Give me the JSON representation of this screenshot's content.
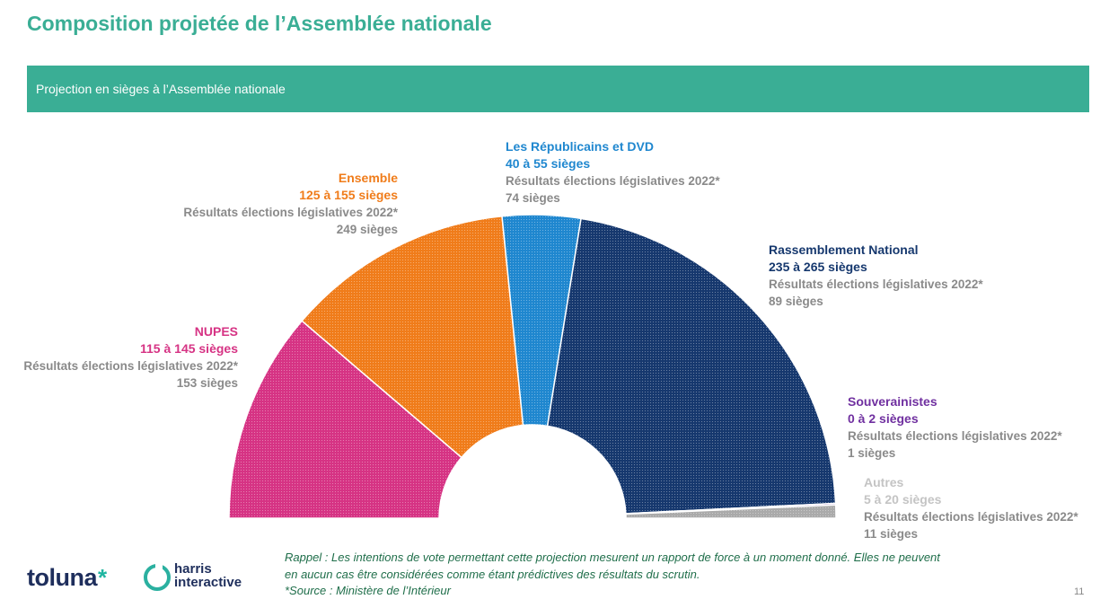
{
  "header": {
    "title": "Composition projetée de l’Assemblée nationale",
    "banner": "Projection en sièges à l’Assemblée nationale"
  },
  "chart_data": {
    "type": "pie",
    "variant": "hemicycle",
    "total_seats": 577,
    "series": [
      {
        "key": "nupes",
        "name": "NUPES",
        "range": "115 à 145 sièges",
        "seats": 130,
        "previous_label": "Résultats élections législatives 2022*",
        "previous": "153 sièges",
        "color": "#d63384"
      },
      {
        "key": "ensemble",
        "name": "Ensemble",
        "range": "125 à 155 sièges",
        "seats": 140,
        "previous_label": "Résultats élections législatives 2022*",
        "previous": "249 sièges",
        "color": "#f07c1a"
      },
      {
        "key": "lr",
        "name": "Les Républicains et DVD",
        "range": "40 à 55 sièges",
        "seats": 48,
        "previous_label": "Résultats élections législatives 2022*",
        "previous": "74 sièges",
        "color": "#1f87cf"
      },
      {
        "key": "rn",
        "name": "Rassemblement National",
        "range": "235 à 265 sièges",
        "seats": 250,
        "previous_label": "Résultats élections législatives 2022*",
        "previous": "89 sièges",
        "color": "#16386e"
      },
      {
        "key": "souv",
        "name": "Souverainistes",
        "range": "0 à 2 sièges",
        "seats": 1,
        "previous_label": "Résultats élections législatives 2022*",
        "previous": "1 sièges",
        "color": "#7030a0"
      },
      {
        "key": "autres",
        "name": "Autres",
        "range": "5 à 20 sièges",
        "seats": 8,
        "previous_label": "Résultats élections législatives 2022*",
        "previous": "11 sièges",
        "color": "#aaaaaa"
      }
    ]
  },
  "footer": {
    "note_line1": "Rappel : Les intentions de vote permettant cette projection mesurent un rapport de force à un moment donné. Elles ne peuvent",
    "note_line2": "en aucun cas être considérées comme étant prédictives des résultats du scrutin.",
    "source": "*Source : Ministère de l’Intérieur",
    "page_number": "11"
  },
  "logos": {
    "toluna": "toluna",
    "toluna_mark": "*",
    "harris_line1": "harris",
    "harris_line2": "interactive"
  }
}
